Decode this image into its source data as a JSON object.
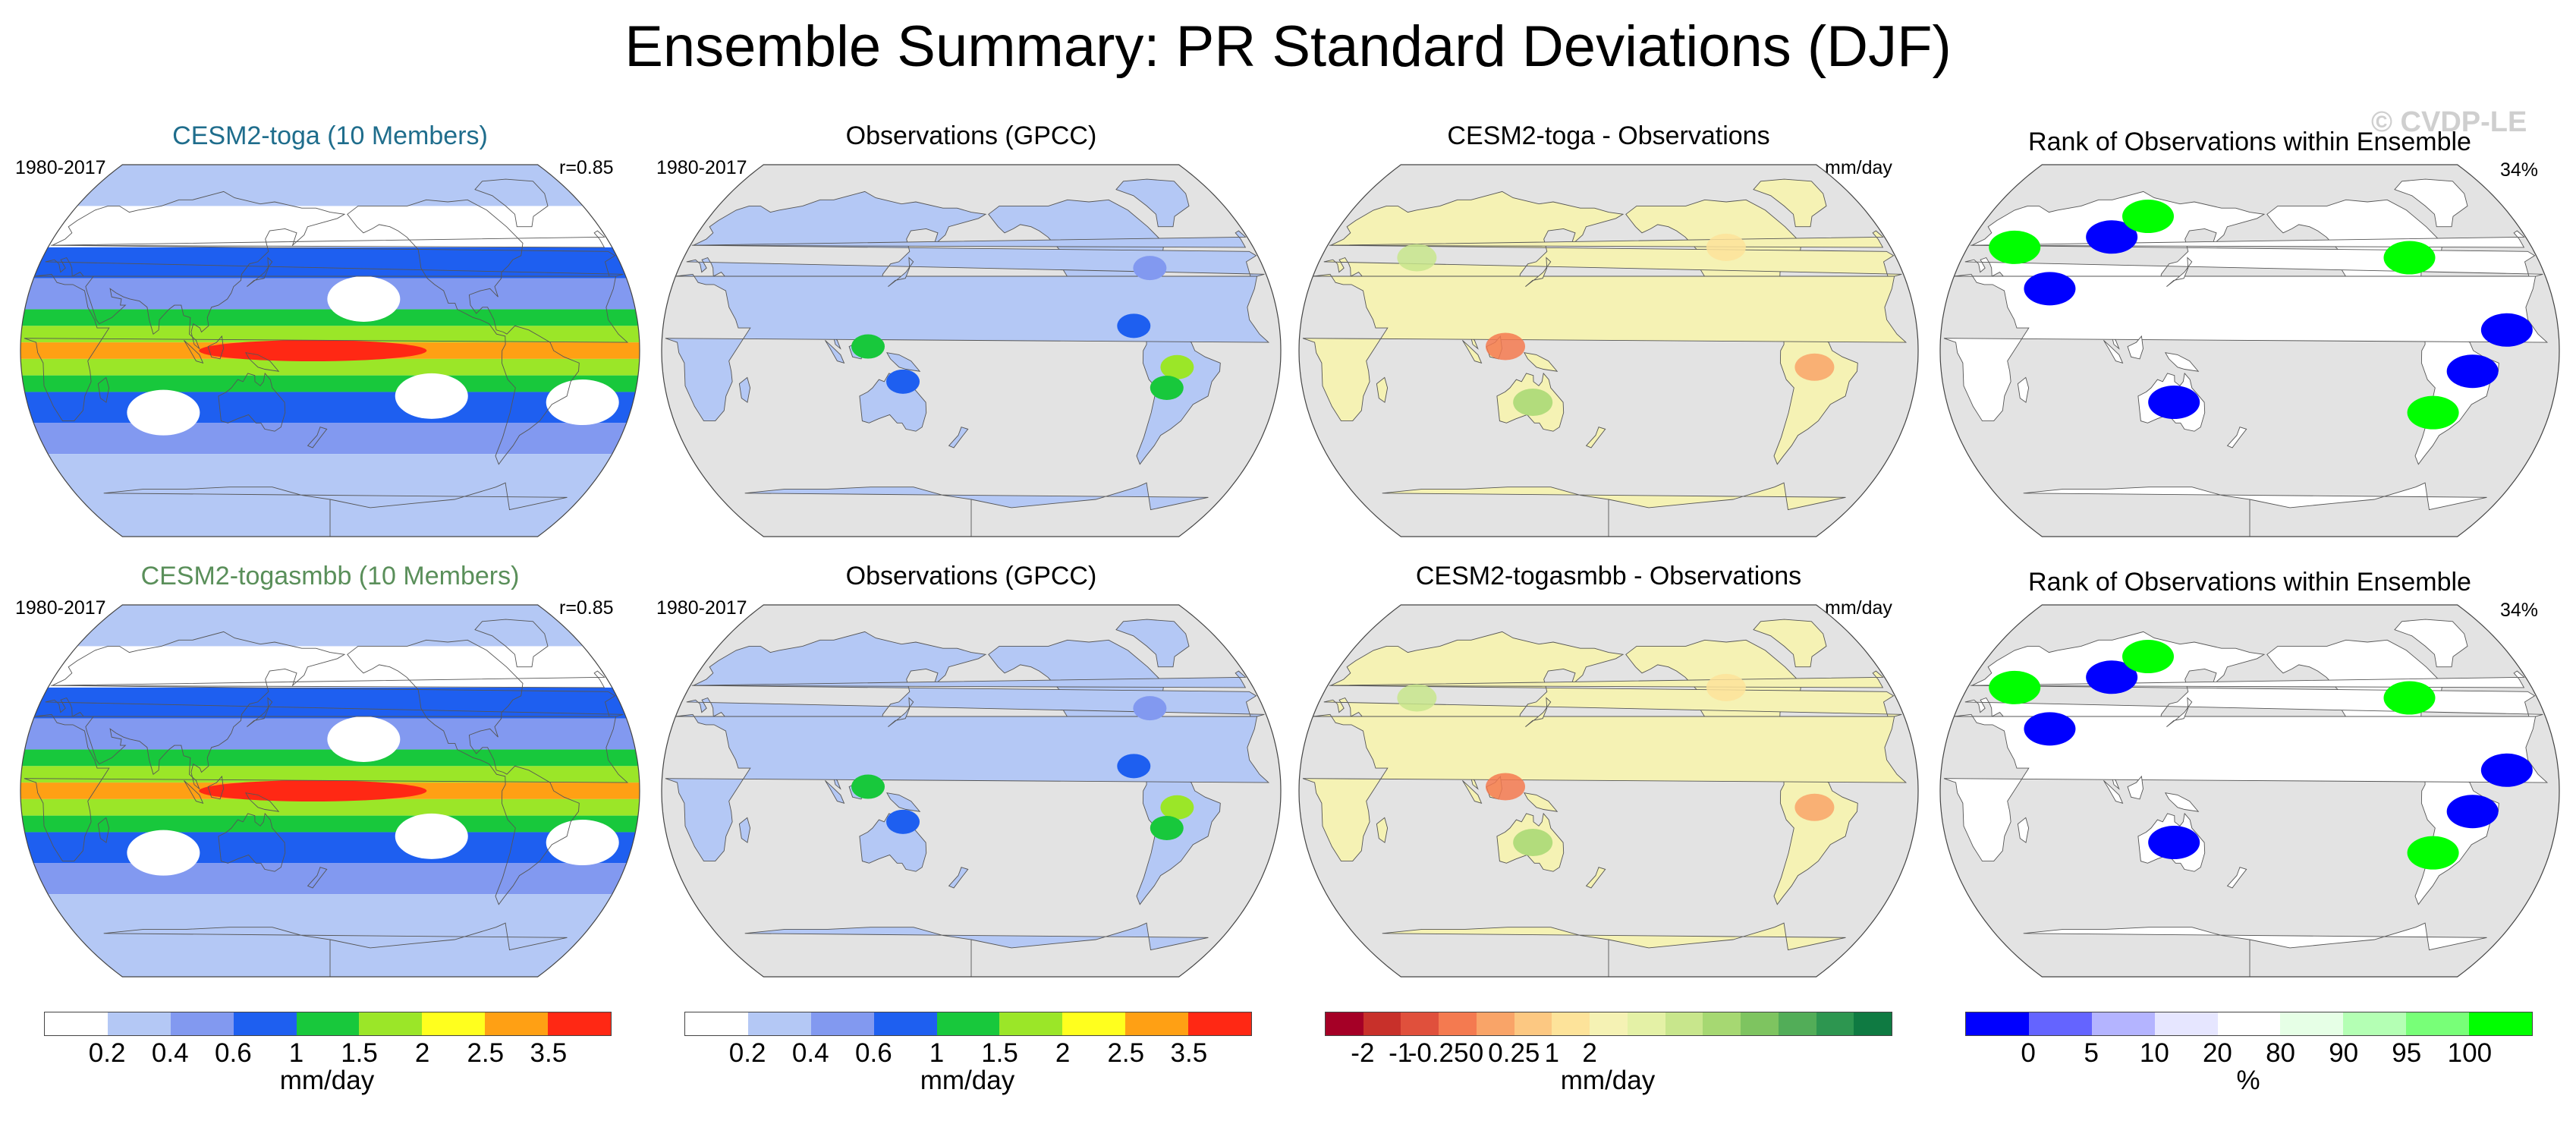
{
  "title": "Ensemble Summary: PR Standard Deviations (DJF)",
  "watermark": "© CVDP-LE",
  "colors": {
    "toga_title": "#1f6d8c",
    "togasmbb_title": "#5a8f5a",
    "ocean": "#e3e3e3",
    "coast": "#555555"
  },
  "rows": [
    {
      "panels": [
        {
          "title": "CESM2-toga (10 Members)",
          "left_label": "1980-2017",
          "right_label": "r=0.85",
          "map_type": "model-sd"
        },
        {
          "title": "Observations (GPCC)",
          "left_label": "1980-2017",
          "right_label": "",
          "map_type": "obs-sd"
        },
        {
          "title": "CESM2-toga - Observations",
          "left_label": "",
          "right_label": "mm/day",
          "map_type": "diff"
        },
        {
          "title": "Rank of Observations within Ensemble",
          "left_label": "",
          "right_label": "34%",
          "map_type": "rank"
        }
      ]
    },
    {
      "panels": [
        {
          "title": "CESM2-togasmbb (10 Members)",
          "left_label": "1980-2017",
          "right_label": "r=0.85",
          "map_type": "model-sd"
        },
        {
          "title": "Observations (GPCC)",
          "left_label": "1980-2017",
          "right_label": "",
          "map_type": "obs-sd"
        },
        {
          "title": "CESM2-togasmbb - Observations",
          "left_label": "",
          "right_label": "mm/day",
          "map_type": "diff"
        },
        {
          "title": "Rank of Observations within Ensemble",
          "left_label": "",
          "right_label": "34%",
          "map_type": "rank"
        }
      ]
    }
  ],
  "colorbars": [
    {
      "unit": "mm/day",
      "ticks": [
        "0.2",
        "0.4",
        "0.6",
        "1",
        "1.5",
        "2",
        "2.5",
        "3.5"
      ],
      "colors": [
        "#ffffff",
        "#b4c8f5",
        "#8299f0",
        "#1e5ff0",
        "#18c83c",
        "#9be628",
        "#ffff1e",
        "#ffa014",
        "#ff2814"
      ]
    },
    {
      "unit": "mm/day",
      "ticks": [
        "0.2",
        "0.4",
        "0.6",
        "1",
        "1.5",
        "2",
        "2.5",
        "3.5"
      ],
      "colors": [
        "#ffffff",
        "#b4c8f5",
        "#8299f0",
        "#1e5ff0",
        "#18c83c",
        "#9be628",
        "#ffff1e",
        "#ffa014",
        "#ff2814"
      ]
    },
    {
      "unit": "mm/day",
      "ticks": [
        "-2",
        "-1",
        "-0.25",
        "0",
        "0.25",
        "1",
        "2"
      ],
      "colors": [
        "#a50026",
        "#c8302a",
        "#e0503c",
        "#f47a50",
        "#f9a468",
        "#fcc882",
        "#fde39a",
        "#f5f2b4",
        "#e4f1a6",
        "#c8e68c",
        "#a6d872",
        "#7ec460",
        "#52ad58",
        "#2d9650",
        "#0f7a42"
      ]
    },
    {
      "unit": "%",
      "ticks": [
        "0",
        "5",
        "10",
        "20",
        "80",
        "90",
        "95",
        "100"
      ],
      "colors": [
        "#0000ff",
        "#6464ff",
        "#b4b4ff",
        "#e6e6ff",
        "#ffffff",
        "#e6ffe6",
        "#b4ffb4",
        "#78ff78",
        "#00ff00"
      ]
    }
  ]
}
